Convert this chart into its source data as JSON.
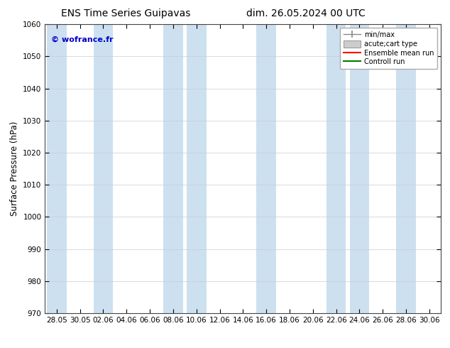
{
  "title_left": "ENS Time Series Guipavas",
  "title_right": "dim. 26.05.2024 00 UTC",
  "ylabel": "Surface Pressure (hPa)",
  "ylim": [
    970,
    1060
  ],
  "yticks": [
    970,
    980,
    990,
    1000,
    1010,
    1020,
    1030,
    1040,
    1050,
    1060
  ],
  "xtick_labels": [
    "28.05",
    "30.05",
    "02.06",
    "04.06",
    "06.06",
    "08.06",
    "10.06",
    "12.06",
    "14.06",
    "16.06",
    "18.06",
    "20.06",
    "22.06",
    "24.06",
    "26.06",
    "28.06",
    "30.06"
  ],
  "watermark": "© wofrance.fr",
  "watermark_color": "#0000cc",
  "background_color": "#ffffff",
  "plot_bg_color": "#ffffff",
  "shaded_band_color": "#cce0f0",
  "legend_entries": [
    "min/max",
    "acute;cart type",
    "Ensemble mean run",
    "Controll run"
  ],
  "legend_colors": [
    "#aaaaaa",
    "#cccccc",
    "#ff0000",
    "#008000"
  ],
  "title_fontsize": 10,
  "tick_fontsize": 7.5,
  "ylabel_fontsize": 8.5,
  "shaded_x_centers": [
    0,
    2,
    5,
    6,
    9,
    12,
    13,
    15
  ],
  "num_xticks": 17
}
